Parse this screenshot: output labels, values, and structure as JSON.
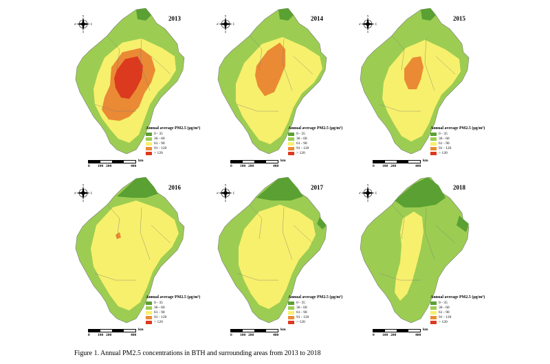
{
  "colors": {
    "c0_35": "#5aa032",
    "c36_60": "#9ccd52",
    "c61_90": "#f7f06c",
    "c91_120": "#ea8a34",
    "c120": "#dc3a1e",
    "border": "#7a7a7a"
  },
  "legend": {
    "title": "Annual average PM2.5 (μg/m³)",
    "items": [
      "0 - 35",
      "36 - 60",
      "61 - 90",
      "91 - 120",
      "> 120"
    ]
  },
  "scalebar": {
    "labels": [
      "0",
      "100",
      "200",
      "400"
    ],
    "unit": "km"
  },
  "compass": {
    "n": "N",
    "s": "S",
    "e": "E",
    "w": "W"
  },
  "panels": [
    {
      "year": "2013",
      "dominant_level": "> 120"
    },
    {
      "year": "2014",
      "dominant_level": "91 - 120"
    },
    {
      "year": "2015",
      "dominant_level": "91 - 120"
    },
    {
      "year": "2016",
      "dominant_level": "61 - 90"
    },
    {
      "year": "2017",
      "dominant_level": "61 - 90"
    },
    {
      "year": "2018",
      "dominant_level": "36 - 60"
    }
  ],
  "caption": "Figure 1. Annual PM2.5 concentrations in BTH and surrounding areas from 2013 to 2018"
}
